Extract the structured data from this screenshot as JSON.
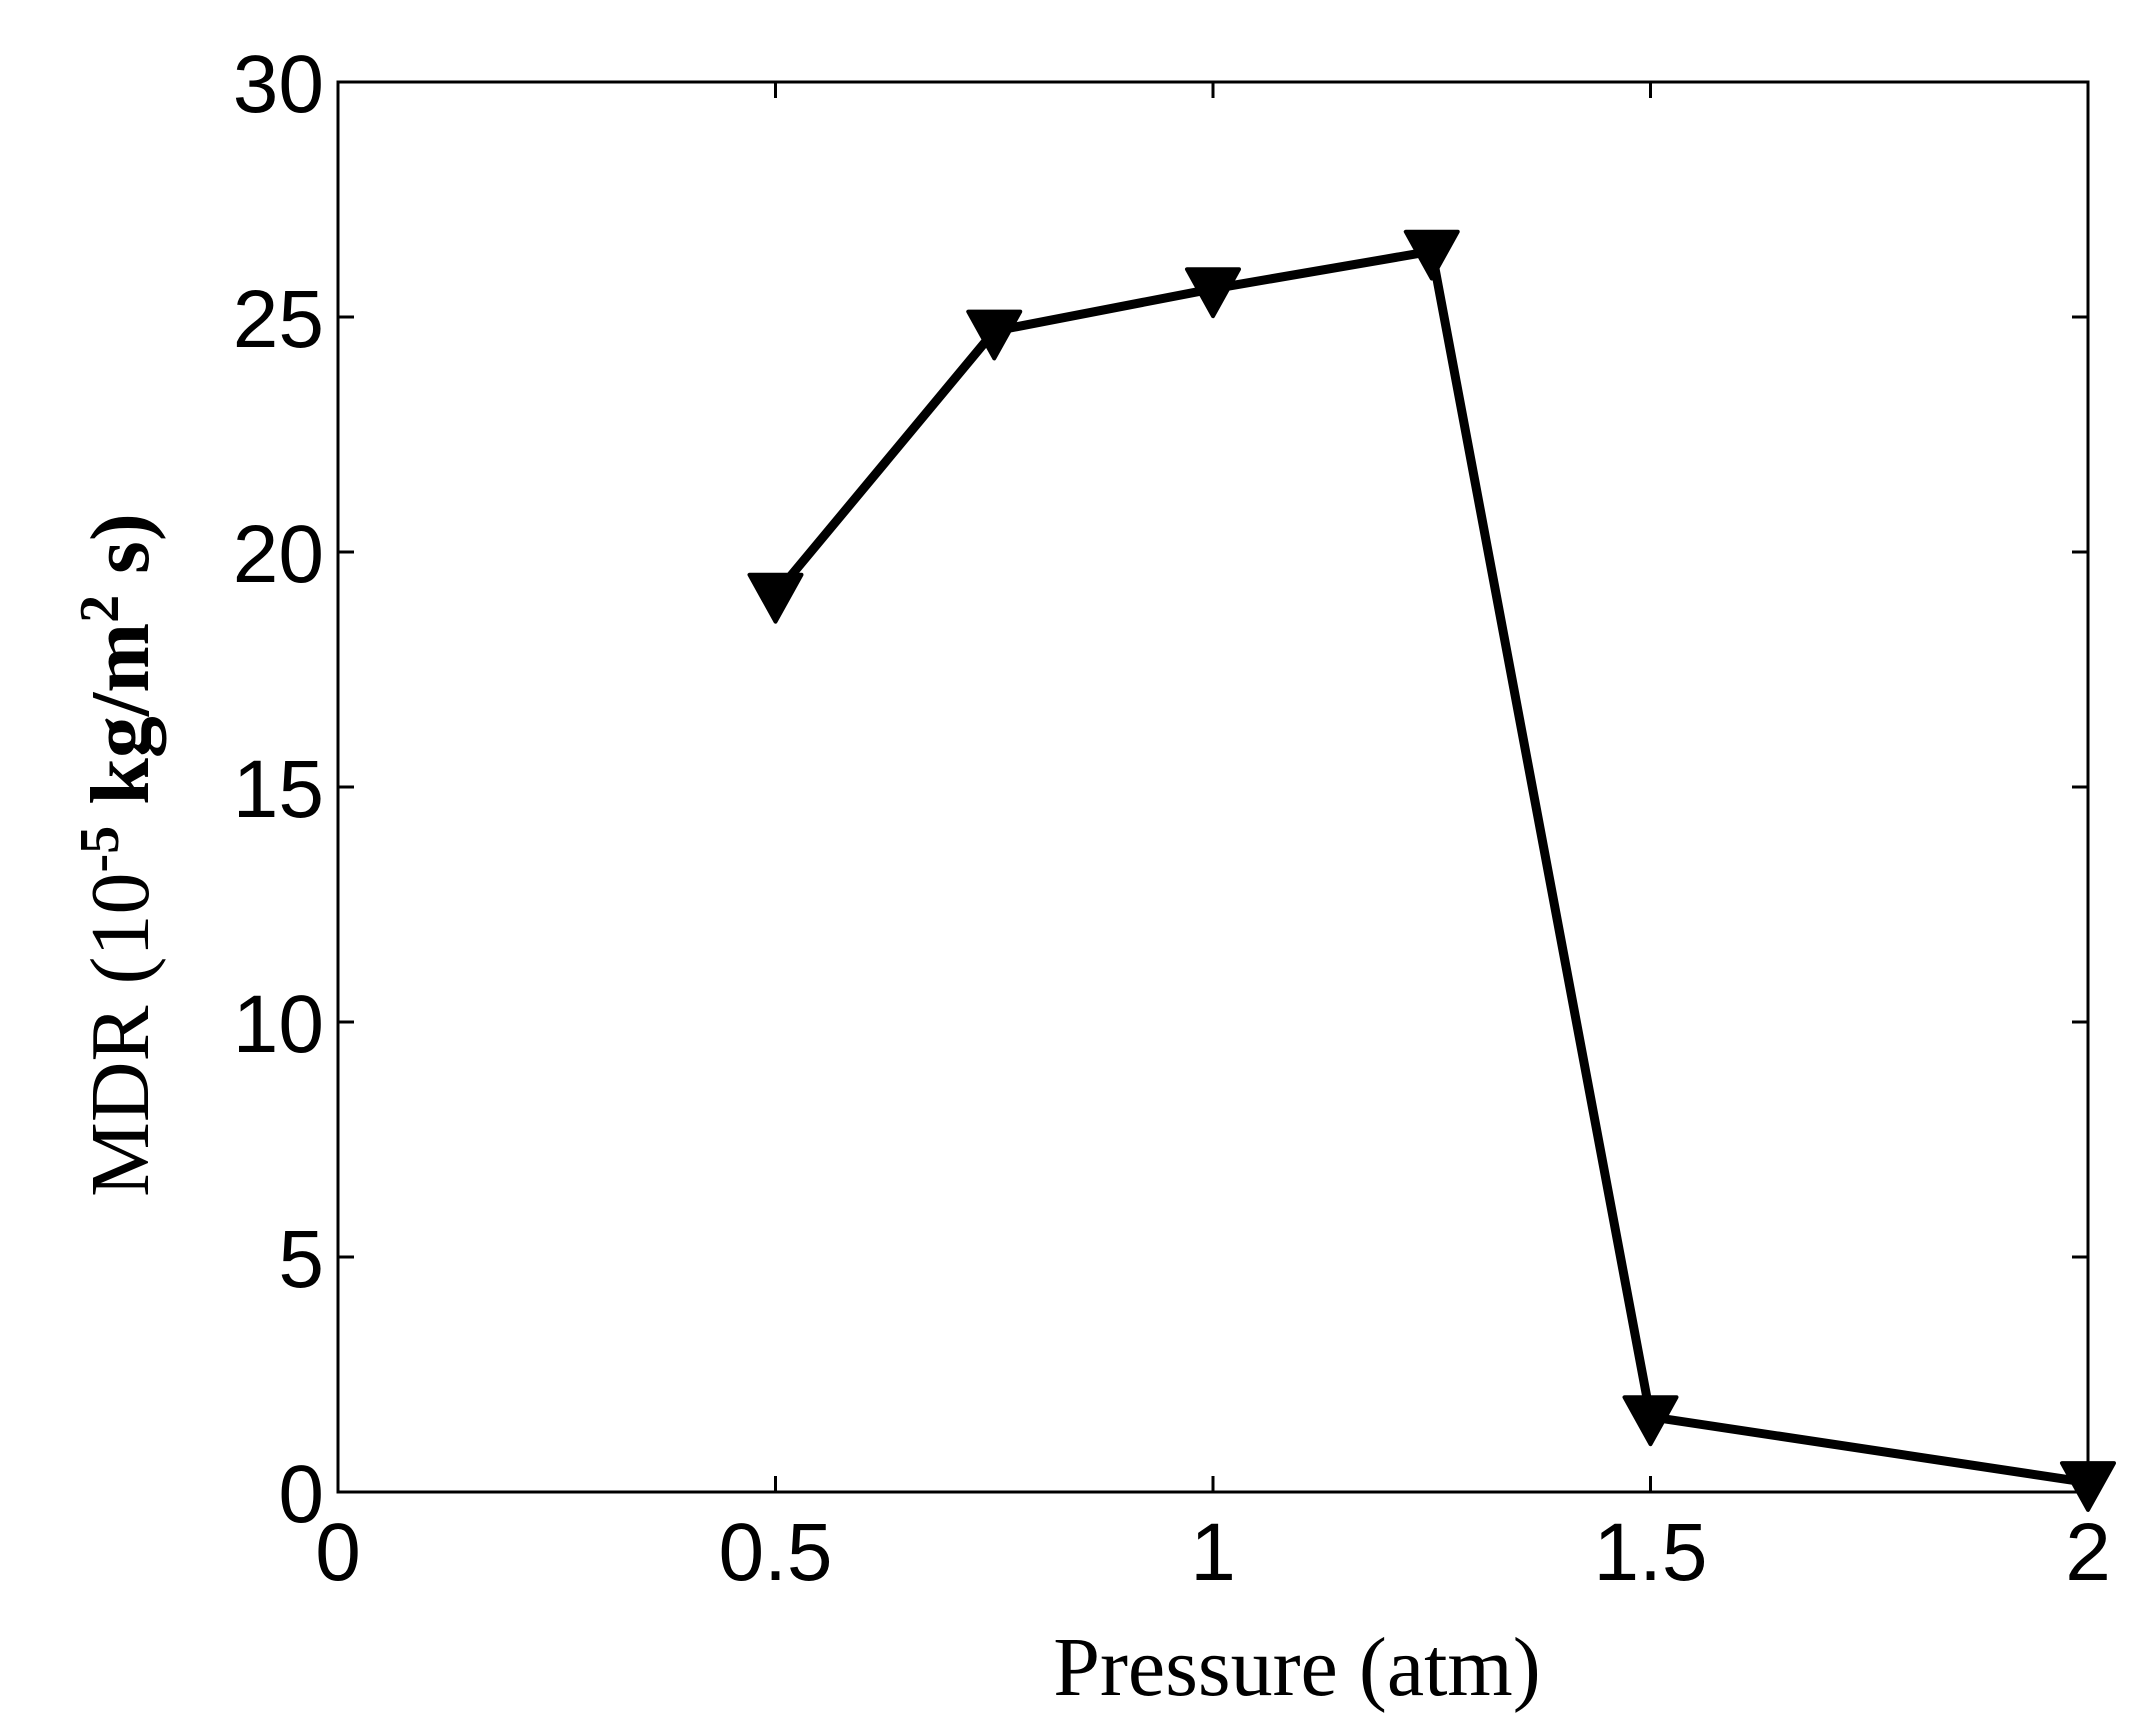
{
  "chart_data": {
    "type": "line",
    "title": "",
    "xlabel": "Pressure (atm)",
    "ylabel": {
      "prefix": "MDR (10",
      "exp1": "-5",
      "middle": " kg/m",
      "exp2": "2",
      "suffix": " s)"
    },
    "xlim": [
      0,
      2
    ],
    "ylim": [
      0,
      30
    ],
    "xticks": [
      0,
      0.5,
      1,
      1.5,
      2
    ],
    "xtick_labels": [
      "0",
      "0.5",
      "1",
      "1.5",
      "2"
    ],
    "yticks": [
      0,
      5,
      10,
      15,
      20,
      25,
      30
    ],
    "ytick_labels": [
      "0",
      "5",
      "10",
      "15",
      "20",
      "25",
      "30"
    ],
    "grid": false,
    "series": [
      {
        "marker": "triangle-down",
        "color": "#000000",
        "x": [
          0.5,
          0.75,
          1.0,
          1.25,
          1.5,
          2.0
        ],
        "y": [
          19.1,
          24.7,
          25.6,
          26.4,
          1.6,
          0.2
        ]
      }
    ]
  }
}
